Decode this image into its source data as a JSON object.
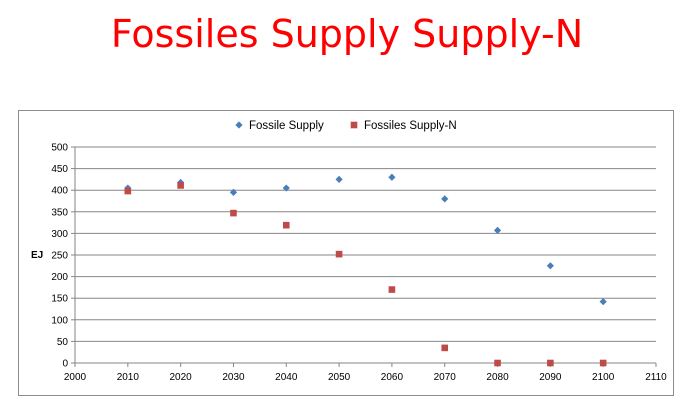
{
  "slide": {
    "title": "Fossiles Supply Supply-N"
  },
  "chart_data": {
    "type": "scatter",
    "title": "",
    "xlabel": "",
    "ylabel": "EJ",
    "xlim": [
      2000,
      2110
    ],
    "ylim": [
      0,
      500
    ],
    "xticks": [
      2000,
      2010,
      2020,
      2030,
      2040,
      2050,
      2060,
      2070,
      2080,
      2090,
      2100,
      2110
    ],
    "yticks": [
      0,
      50,
      100,
      150,
      200,
      250,
      300,
      350,
      400,
      450,
      500
    ],
    "grid": "horizontal",
    "legend_position": "top",
    "series": [
      {
        "name": "Fossile Supply",
        "marker": "diamond",
        "color": "#4a7ebb",
        "x": [
          2010,
          2020,
          2030,
          2040,
          2050,
          2060,
          2070,
          2080,
          2090,
          2100
        ],
        "y": [
          405,
          418,
          395,
          405,
          425,
          430,
          380,
          307,
          225,
          142
        ]
      },
      {
        "name": "Fossiles Supply-N",
        "marker": "square",
        "color": "#be4b48",
        "x": [
          2010,
          2020,
          2030,
          2040,
          2050,
          2060,
          2070,
          2080,
          2090,
          2100
        ],
        "y": [
          398,
          411,
          347,
          319,
          252,
          170,
          35,
          0,
          0,
          0
        ]
      }
    ]
  }
}
